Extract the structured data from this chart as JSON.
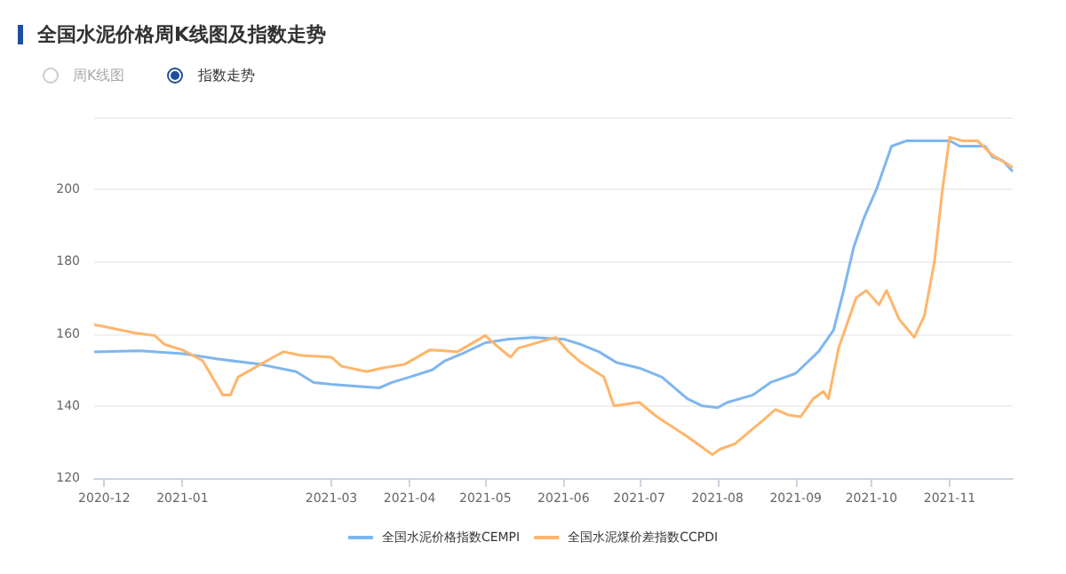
{
  "chart_data": {
    "type": "line",
    "title": "全国水泥价格周K线图及指数走势",
    "annotations": [
      "周K线图",
      "指数走势"
    ],
    "series": [
      {
        "name": "全国水泥价格指数CEMPI",
        "color": "#7eb6f0",
        "x": [
          "2020-11-27",
          "2020-12-15",
          "2021-01-01",
          "2021-01-15",
          "2021-02-01",
          "2021-02-15",
          "2021-02-22",
          "2021-03-01",
          "2021-03-10",
          "2021-03-20",
          "2021-03-25",
          "2021-04-01",
          "2021-04-10",
          "2021-04-15",
          "2021-04-22",
          "2021-05-01",
          "2021-05-10",
          "2021-05-20",
          "2021-06-01",
          "2021-06-08",
          "2021-06-15",
          "2021-06-22",
          "2021-07-01",
          "2021-07-10",
          "2021-07-20",
          "2021-07-26",
          "2021-08-01",
          "2021-08-05",
          "2021-08-15",
          "2021-08-22",
          "2021-08-28",
          "2021-09-01",
          "2021-09-10",
          "2021-09-16",
          "2021-09-20",
          "2021-09-24",
          "2021-09-28",
          "2021-10-03",
          "2021-10-06",
          "2021-10-09",
          "2021-10-15",
          "2021-11-01",
          "2021-11-05",
          "2021-11-15",
          "2021-11-18",
          "2021-11-22",
          "2021-11-26"
        ],
        "values": [
          155,
          155.3,
          154.5,
          153,
          151.5,
          149.5,
          146.5,
          146,
          145.5,
          145,
          146.5,
          148,
          150,
          152.5,
          154.5,
          157.5,
          158.5,
          159,
          158.5,
          157,
          155,
          152,
          150.5,
          148,
          142,
          140,
          139.5,
          141,
          143,
          146.5,
          148,
          149,
          155,
          161,
          172,
          184,
          192,
          200,
          206,
          212,
          213.5,
          213.5,
          212,
          212,
          209,
          208,
          205
        ]
      },
      {
        "name": "全国水泥煤价差指数CCPDI",
        "color": "#ffb56b",
        "x": [
          "2020-11-27",
          "2020-12-01",
          "2020-12-13",
          "2020-12-21",
          "2020-12-25",
          "2021-01-01",
          "2021-01-09",
          "2021-01-17",
          "2021-01-20",
          "2021-01-23",
          "2021-02-06",
          "2021-02-10",
          "2021-02-17",
          "2021-03-01",
          "2021-03-05",
          "2021-03-15",
          "2021-03-21",
          "2021-03-30",
          "2021-04-09",
          "2021-04-20",
          "2021-05-01",
          "2021-05-05",
          "2021-05-11",
          "2021-05-14",
          "2021-05-29",
          "2021-06-03",
          "2021-06-08",
          "2021-06-17",
          "2021-06-21",
          "2021-07-01",
          "2021-07-08",
          "2021-07-20",
          "2021-07-30",
          "2021-08-02",
          "2021-08-08",
          "2021-08-19",
          "2021-08-24",
          "2021-08-29",
          "2021-09-03",
          "2021-09-08",
          "2021-09-12",
          "2021-09-14",
          "2021-09-18",
          "2021-09-25",
          "2021-09-29",
          "2021-10-04",
          "2021-10-07",
          "2021-10-12",
          "2021-10-18",
          "2021-10-22",
          "2021-10-26",
          "2021-10-29",
          "2021-11-01",
          "2021-11-06",
          "2021-11-12",
          "2021-11-18",
          "2021-11-24",
          "2021-11-26"
        ],
        "values": [
          162.5,
          162,
          160.2,
          159.5,
          157,
          155.5,
          152.5,
          143,
          143,
          148,
          153.5,
          155,
          154,
          153.5,
          151,
          149.5,
          150.5,
          151.5,
          155.5,
          155,
          159.5,
          157,
          153.5,
          156,
          159,
          155,
          152,
          148,
          140,
          141,
          137,
          131.5,
          126.5,
          128,
          129.5,
          136,
          139,
          137.5,
          137,
          142,
          144,
          142,
          156,
          170,
          172,
          168,
          172,
          164,
          159,
          165,
          180,
          199,
          214.5,
          213.5,
          213.5,
          209.5,
          207,
          206
        ]
      }
    ],
    "xlim": [
      "2020-11-27",
      "2021-11-26"
    ],
    "xticks": [
      {
        "value": "2020-12-01",
        "label": "2020-12"
      },
      {
        "value": "2021-01-01",
        "label": "2021-01"
      },
      {
        "value": "2021-03-01",
        "label": "2021-03"
      },
      {
        "value": "2021-04-01",
        "label": "2021-04"
      },
      {
        "value": "2021-05-01",
        "label": "2021-05"
      },
      {
        "value": "2021-06-01",
        "label": "2021-06"
      },
      {
        "value": "2021-07-01",
        "label": "2021-07"
      },
      {
        "value": "2021-08-01",
        "label": "2021-08"
      },
      {
        "value": "2021-09-01",
        "label": "2021-09"
      },
      {
        "value": "2021-10-01",
        "label": "2021-10"
      },
      {
        "value": "2021-11-01",
        "label": "2021-11"
      }
    ],
    "ylim": [
      120,
      220
    ],
    "yticks": [
      120,
      140,
      160,
      180,
      200,
      {
        "value": 220,
        "label": null
      }
    ],
    "grid": "y",
    "legend": "bottom",
    "marker": "none",
    "line_style": "solid"
  }
}
